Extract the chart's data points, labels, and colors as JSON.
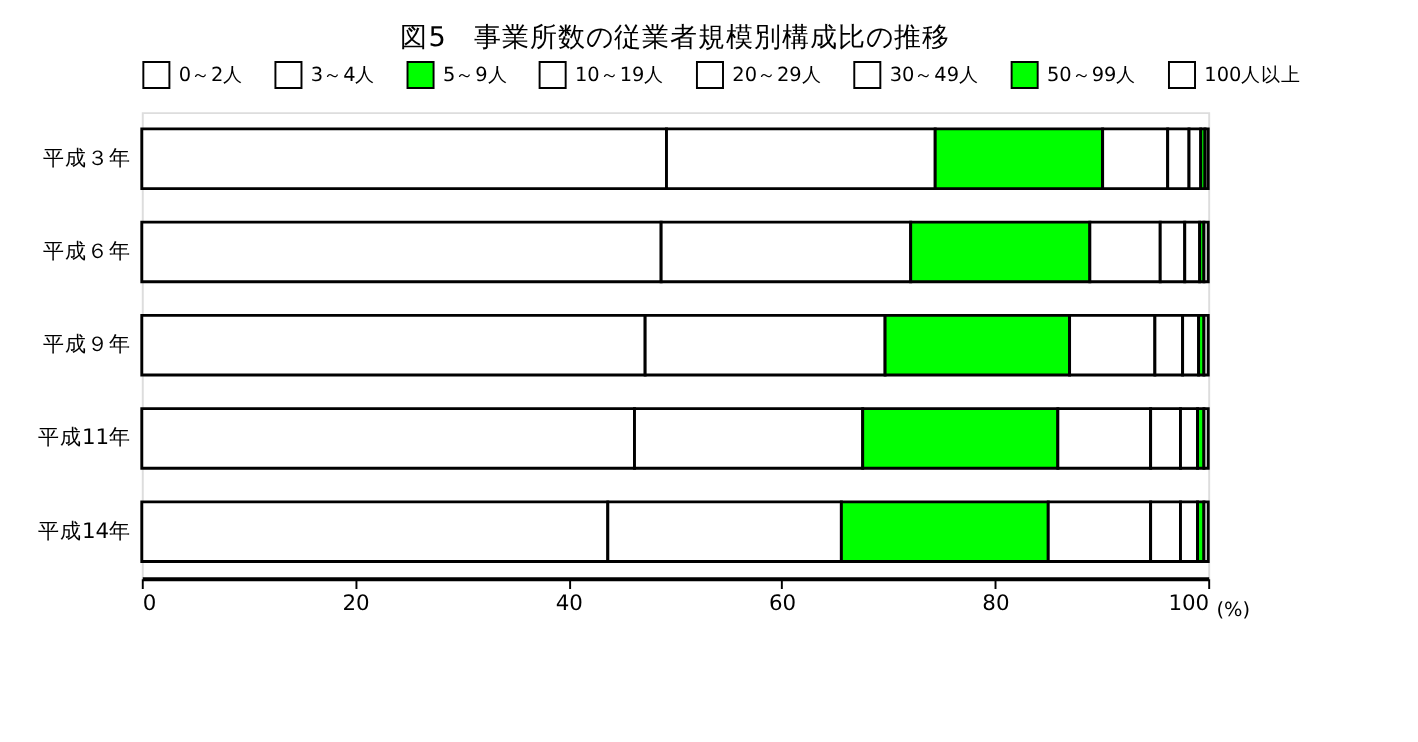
{
  "chart_data": {
    "type": "bar",
    "title": "図5　事業所数の従業者規模別構成比の推移",
    "orientation": "horizontal",
    "stacked": true,
    "categories": [
      "平成３年",
      "平成６年",
      "平成９年",
      "平成11年",
      "平成14年"
    ],
    "series": [
      {
        "name": "0～2人",
        "color": "#ffffff",
        "values": [
          49.2,
          48.7,
          47.2,
          46.2,
          43.7
        ]
      },
      {
        "name": "3～4人",
        "color": "#ffffff",
        "values": [
          25.2,
          23.4,
          22.5,
          21.4,
          21.9
        ]
      },
      {
        "name": "5～9人",
        "color": "#00ff00",
        "values": [
          15.7,
          16.8,
          17.3,
          18.3,
          19.4
        ]
      },
      {
        "name": "10～19人",
        "color": "#ffffff",
        "values": [
          6.1,
          6.6,
          8.0,
          8.7,
          9.6
        ]
      },
      {
        "name": "20～29人",
        "color": "#ffffff",
        "values": [
          2.0,
          2.3,
          2.6,
          2.8,
          2.8
        ]
      },
      {
        "name": "30～49人",
        "color": "#ffffff",
        "values": [
          1.1,
          1.4,
          1.5,
          1.6,
          1.6
        ]
      },
      {
        "name": "50～99人",
        "color": "#00ff00",
        "values": [
          0.4,
          0.4,
          0.5,
          0.6,
          0.6
        ]
      },
      {
        "name": "100人以上",
        "color": "#ffffff",
        "values": [
          0.3,
          0.4,
          0.4,
          0.4,
          0.4
        ]
      }
    ],
    "xlim": [
      0,
      100
    ],
    "xticks": [
      0,
      20,
      40,
      60,
      80,
      100
    ],
    "xlabel": "(%)",
    "grid": false,
    "legend": "top"
  }
}
